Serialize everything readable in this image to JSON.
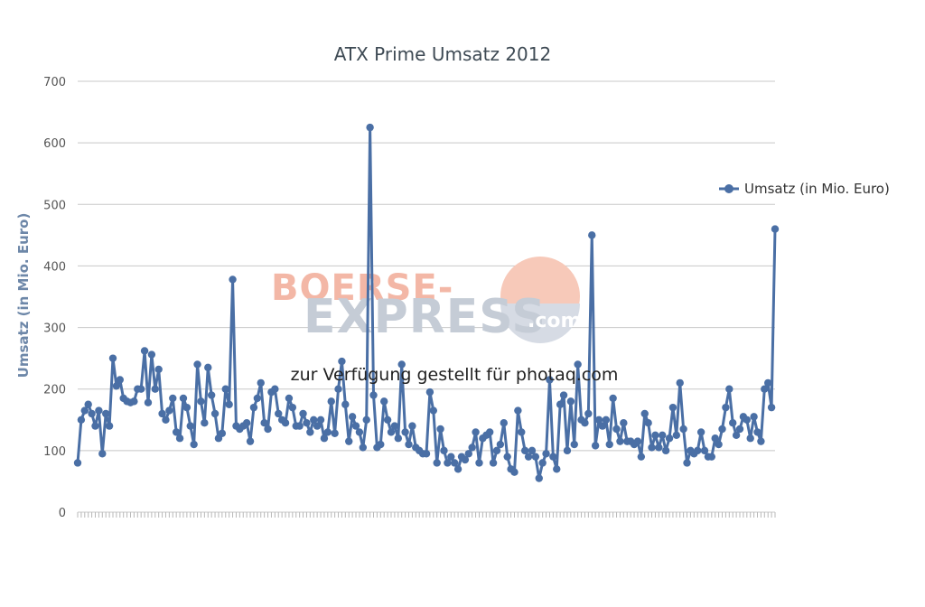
{
  "chart_data": {
    "type": "line",
    "title": "ATX Prime Umsatz 2012",
    "xlabel": "",
    "ylabel": "Umsatz (in Mio. Euro)",
    "ylim": [
      0,
      700
    ],
    "yticks": [
      "0",
      "100",
      "200",
      "300",
      "400",
      "500",
      "600",
      "700"
    ],
    "grid": true,
    "legend_position": "right",
    "series": [
      {
        "name": "Umsatz (in Mio. Euro)",
        "color": "#4a6fa5",
        "values": [
          80,
          150,
          165,
          175,
          160,
          140,
          165,
          95,
          160,
          140,
          250,
          205,
          215,
          185,
          180,
          178,
          180,
          200,
          200,
          262,
          178,
          256,
          200,
          232,
          160,
          150,
          165,
          185,
          130,
          120,
          185,
          170,
          140,
          110,
          240,
          180,
          145,
          235,
          190,
          160,
          120,
          128,
          200,
          175,
          378,
          140,
          135,
          140,
          145,
          115,
          170,
          185,
          210,
          145,
          135,
          195,
          200,
          160,
          150,
          145,
          185,
          170,
          140,
          140,
          160,
          145,
          130,
          150,
          140,
          150,
          120,
          130,
          180,
          128,
          200,
          245,
          175,
          115,
          155,
          140,
          130,
          105,
          150,
          625,
          190,
          105,
          110,
          180,
          150,
          130,
          140,
          120,
          240,
          130,
          110,
          140,
          105,
          100,
          95,
          95,
          195,
          165,
          80,
          135,
          100,
          80,
          90,
          80,
          70,
          90,
          85,
          95,
          105,
          130,
          80,
          120,
          125,
          130,
          80,
          100,
          110,
          145,
          90,
          70,
          65,
          165,
          130,
          100,
          90,
          100,
          90,
          55,
          80,
          95,
          215,
          90,
          70,
          175,
          190,
          100,
          180,
          110,
          240,
          150,
          145,
          160,
          450,
          108,
          150,
          140,
          150,
          110,
          185,
          135,
          115,
          145,
          115,
          115,
          110,
          115,
          90,
          160,
          145,
          105,
          125,
          105,
          125,
          100,
          120,
          170,
          125,
          210,
          135,
          80,
          100,
          95,
          100,
          130,
          100,
          90,
          90,
          120,
          110,
          135,
          170,
          200,
          145,
          125,
          135,
          155,
          150,
          120,
          155,
          130,
          115,
          200,
          210,
          170,
          460
        ]
      }
    ]
  },
  "watermark": {
    "line1": "BOERSE-",
    "line2": "EXPRESS",
    "suffix": ".com"
  },
  "credit": "zur Verfügung gestellt für photaq.com"
}
